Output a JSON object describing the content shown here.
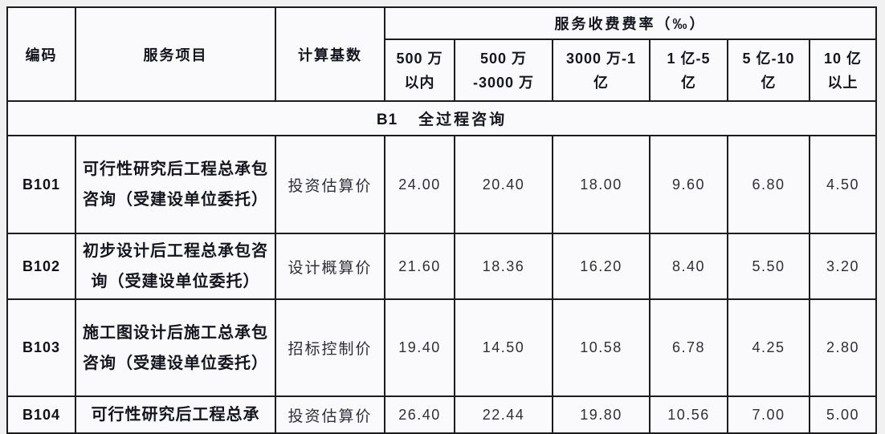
{
  "page": {
    "background": "#f2f1f1",
    "cell_background": "#fafafc",
    "border_color": "#1c1c1c",
    "text_color": "#15151f"
  },
  "header": {
    "code_label": "编码",
    "service_label": "服务项目",
    "base_label": "计算基数",
    "rate_group_label": "服务收费费率（‰）",
    "rate_columns": [
      {
        "line1": "500 万",
        "line2": "以内"
      },
      {
        "line1": "500 万",
        "line2": "-3000 万"
      },
      {
        "line1": "3000 万-1",
        "line2": "亿"
      },
      {
        "line1": "1 亿-5",
        "line2": "亿"
      },
      {
        "line1": "5 亿-10",
        "line2": "亿"
      },
      {
        "line1": "10 亿",
        "line2": "以上"
      }
    ]
  },
  "section": {
    "code": "B1",
    "title": "全过程咨询"
  },
  "rows": [
    {
      "code": "B101",
      "service": "可行性研究后工程总承包咨询（受建设单位委托）",
      "base": "投资估算价",
      "values": [
        "24.00",
        "20.40",
        "18.00",
        "9.60",
        "6.80",
        "4.50"
      ]
    },
    {
      "code": "B102",
      "service": "初步设计后工程总承包咨询（受建设单位委托）",
      "base": "设计概算价",
      "values": [
        "21.60",
        "18.36",
        "16.20",
        "8.40",
        "5.50",
        "3.20"
      ]
    },
    {
      "code": "B103",
      "service": "施工图设计后施工总承包咨询（受建设单位委托）",
      "base": "招标控制价",
      "values": [
        "19.40",
        "14.50",
        "10.58",
        "6.78",
        "4.25",
        "2.80"
      ]
    },
    {
      "code": "B104",
      "service": "可行性研究后工程总承",
      "base": "投资估算价",
      "values": [
        "26.40",
        "22.44",
        "19.80",
        "10.56",
        "7.00",
        "5.00"
      ]
    }
  ]
}
